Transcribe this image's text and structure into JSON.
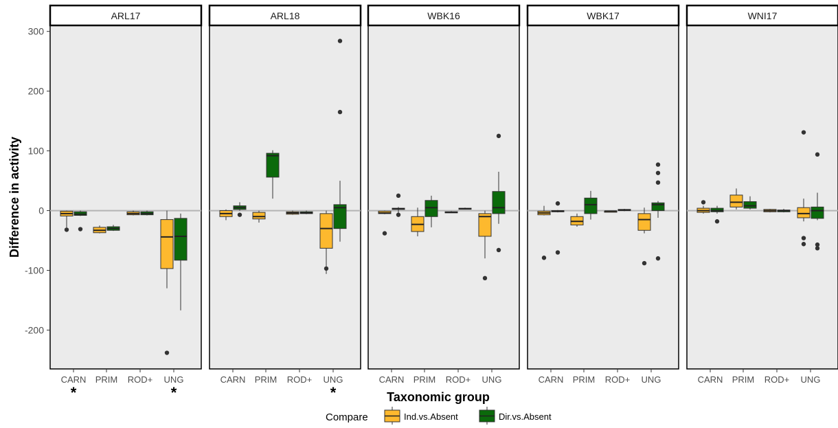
{
  "chart_data": {
    "type": "boxplot",
    "ylabel": "Difference in activity",
    "xlabel": "Taxonomic group",
    "ylim": [
      -265,
      310
    ],
    "yticks": [
      300,
      200,
      100,
      0,
      -100,
      -200
    ],
    "categories": [
      "CARN",
      "PRIM",
      "ROD+",
      "UNG"
    ],
    "legend": {
      "title": "Compare",
      "position": "bottom",
      "entries": [
        {
          "key": "ind",
          "label": "Ind.vs.Absent",
          "color": "#FDB92E"
        },
        {
          "key": "dir",
          "label": "Dir.vs.Absent",
          "color": "#0B6A0B"
        }
      ]
    },
    "reference_line": 0,
    "panel_background": "#EBEBEB",
    "panels": [
      {
        "title": "ARL17",
        "significance": [
          "*",
          "",
          "",
          "*"
        ],
        "boxes": {
          "ind": [
            {
              "lo": -30,
              "q1": -9,
              "med": -5,
              "q3": -1,
              "hi": 0,
              "out": [
                -32
              ]
            },
            {
              "lo": -38,
              "q1": -37,
              "med": -33,
              "q3": -28,
              "hi": -25,
              "out": []
            },
            {
              "lo": -8,
              "q1": -7,
              "med": -5,
              "q3": -2,
              "hi": 0,
              "out": []
            },
            {
              "lo": -130,
              "q1": -97,
              "med": -44,
              "q3": -15,
              "hi": 0,
              "out": [
                -238
              ]
            }
          ],
          "dir": [
            {
              "lo": -9,
              "q1": -8,
              "med": -6,
              "q3": -2,
              "hi": 0,
              "out": [
                -31
              ]
            },
            {
              "lo": -34,
              "q1": -33,
              "med": -30,
              "q3": -27,
              "hi": -24,
              "out": []
            },
            {
              "lo": -8,
              "q1": -7,
              "med": -5,
              "q3": -2,
              "hi": 0,
              "out": []
            },
            {
              "lo": -167,
              "q1": -83,
              "med": -43,
              "q3": -13,
              "hi": -5,
              "out": []
            }
          ]
        }
      },
      {
        "title": "ARL18",
        "significance": [
          "",
          "",
          "",
          "*"
        ],
        "boxes": {
          "ind": [
            {
              "lo": -16,
              "q1": -10,
              "med": -5,
              "q3": 0,
              "hi": 2,
              "out": []
            },
            {
              "lo": -20,
              "q1": -14,
              "med": -10,
              "q3": -3,
              "hi": 0,
              "out": []
            },
            {
              "lo": -7,
              "q1": -6,
              "med": -4,
              "q3": -2,
              "hi": 0,
              "out": []
            },
            {
              "lo": -106,
              "q1": -63,
              "med": -30,
              "q3": -5,
              "hi": 0,
              "out": [
                -97
              ]
            }
          ],
          "dir": [
            {
              "lo": 0,
              "q1": 2,
              "med": 5,
              "q3": 8,
              "hi": 14,
              "out": [
                -7
              ]
            },
            {
              "lo": 20,
              "q1": 56,
              "med": 92,
              "q3": 96,
              "hi": 101,
              "out": []
            },
            {
              "lo": -6,
              "q1": -5,
              "med": -4,
              "q3": -2,
              "hi": 0,
              "out": []
            },
            {
              "lo": -52,
              "q1": -30,
              "med": 5,
              "q3": 10,
              "hi": 50,
              "out": [
                284,
                165
              ]
            }
          ]
        }
      },
      {
        "title": "WBK16",
        "significance": [
          "",
          "",
          "",
          ""
        ],
        "boxes": {
          "ind": [
            {
              "lo": -6,
              "q1": -5,
              "med": -4,
              "q3": -1,
              "hi": 0,
              "out": [
                -38
              ]
            },
            {
              "lo": -43,
              "q1": -35,
              "med": -23,
              "q3": -10,
              "hi": 5,
              "out": []
            },
            {
              "lo": -4,
              "q1": -3,
              "med": -3,
              "q3": -2,
              "hi": -1,
              "out": []
            },
            {
              "lo": -80,
              "q1": -43,
              "med": -10,
              "q3": -5,
              "hi": 0,
              "out": [
                -113
              ]
            }
          ],
          "dir": [
            {
              "lo": -4,
              "q1": 2,
              "med": 3,
              "q3": 4,
              "hi": 6,
              "out": [
                25,
                -7
              ]
            },
            {
              "lo": -28,
              "q1": -10,
              "med": 5,
              "q3": 17,
              "hi": 25,
              "out": []
            },
            {
              "lo": 2,
              "q1": 3,
              "med": 3,
              "q3": 4,
              "hi": 5,
              "out": []
            },
            {
              "lo": -22,
              "q1": -5,
              "med": 5,
              "q3": 32,
              "hi": 65,
              "out": [
                125,
                -66
              ]
            }
          ]
        }
      },
      {
        "title": "WBK17",
        "significance": [
          "",
          "",
          "",
          ""
        ],
        "boxes": {
          "ind": [
            {
              "lo": -8,
              "q1": -7,
              "med": -4,
              "q3": -1,
              "hi": 8,
              "out": [
                -79
              ]
            },
            {
              "lo": -27,
              "q1": -24,
              "med": -18,
              "q3": -10,
              "hi": -5,
              "out": []
            },
            {
              "lo": -2,
              "q1": -1,
              "med": -1,
              "q3": -1,
              "hi": 0,
              "out": []
            },
            {
              "lo": -38,
              "q1": -33,
              "med": -15,
              "q3": -5,
              "hi": 5,
              "out": [
                -88
              ]
            }
          ],
          "dir": [
            {
              "lo": -3,
              "q1": -2,
              "med": -1,
              "q3": 0,
              "hi": 1,
              "out": [
                12,
                -70
              ]
            },
            {
              "lo": -15,
              "q1": -5,
              "med": 10,
              "q3": 21,
              "hi": 33,
              "out": []
            },
            {
              "lo": -1,
              "q1": 0,
              "med": 1,
              "q3": 2,
              "hi": 3,
              "out": []
            },
            {
              "lo": -12,
              "q1": 0,
              "med": 10,
              "q3": 13,
              "hi": 16,
              "out": [
                77,
                63,
                47,
                -80
              ]
            }
          ]
        }
      },
      {
        "title": "WNI17",
        "significance": [
          "",
          "",
          "",
          ""
        ],
        "boxes": {
          "ind": [
            {
              "lo": -5,
              "q1": -3,
              "med": 0,
              "q3": 4,
              "hi": 8,
              "out": [
                14
              ]
            },
            {
              "lo": 2,
              "q1": 6,
              "med": 14,
              "q3": 26,
              "hi": 37,
              "out": []
            },
            {
              "lo": -3,
              "q1": -2,
              "med": 0,
              "q3": 2,
              "hi": 3,
              "out": []
            },
            {
              "lo": -18,
              "q1": -12,
              "med": -5,
              "q3": 5,
              "hi": 20,
              "out": [
                131,
                -46,
                -56
              ]
            }
          ],
          "dir": [
            {
              "lo": -5,
              "q1": -2,
              "med": 0,
              "q3": 4,
              "hi": 8,
              "out": [
                -18
              ]
            },
            {
              "lo": 2,
              "q1": 4,
              "med": 8,
              "q3": 15,
              "hi": 24,
              "out": []
            },
            {
              "lo": -3,
              "q1": -2,
              "med": 0,
              "q3": 1,
              "hi": 3,
              "out": []
            },
            {
              "lo": -16,
              "q1": -13,
              "med": 0,
              "q3": 6,
              "hi": 30,
              "out": [
                94,
                -57,
                -63
              ]
            }
          ]
        }
      }
    ]
  }
}
